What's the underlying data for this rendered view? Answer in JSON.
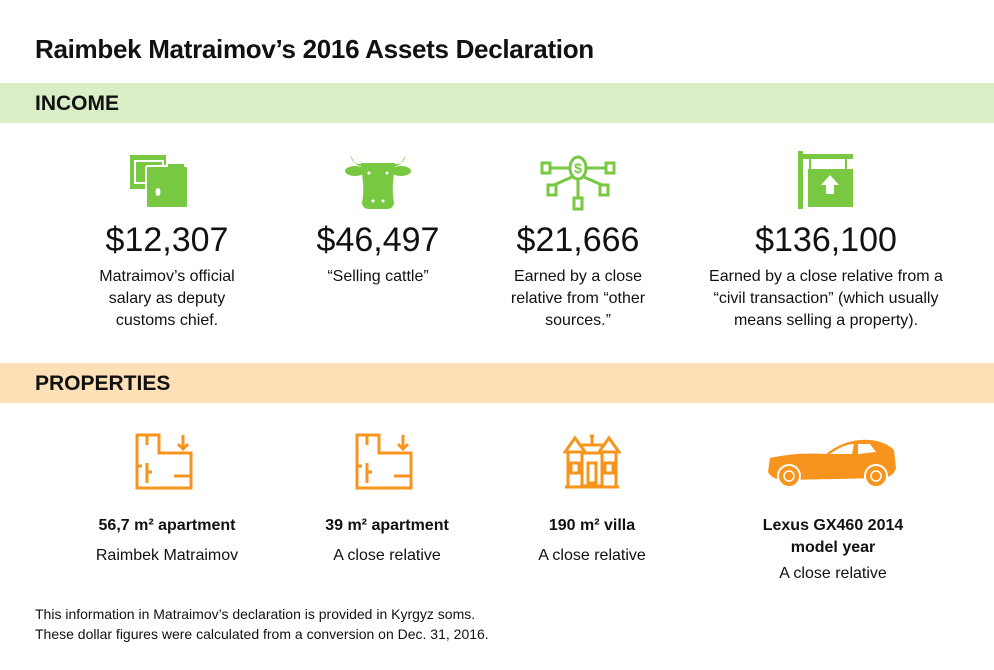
{
  "title": "Raimbek Matraimov’s 2016 Assets Declaration",
  "colors": {
    "income_band": "#d9eec6",
    "income_icon": "#78c841",
    "properties_band": "#fee0b7",
    "properties_icon": "#f7941d"
  },
  "income": {
    "heading": "INCOME",
    "items": [
      {
        "icon": "money-wallet-icon",
        "amount": "$12,307",
        "description": "Matraimov’s official salary as deputy customs chief."
      },
      {
        "icon": "cow-icon",
        "amount": "$46,497",
        "description": "“Selling cattle”"
      },
      {
        "icon": "dollar-network-icon",
        "amount": "$21,666",
        "description": "Earned by a close relative from “other sources.”"
      },
      {
        "icon": "house-sign-icon",
        "amount": "$136,100",
        "description": "Earned by a close relative from a “civil transaction” (which usually means selling a property)."
      }
    ]
  },
  "properties": {
    "heading": "PROPERTIES",
    "items": [
      {
        "icon": "floor-plan-icon",
        "name": "56,7 m² apartment",
        "owner": "Raimbek Matraimov"
      },
      {
        "icon": "floor-plan-icon",
        "name": "39 m² apartment",
        "owner": "A close relative"
      },
      {
        "icon": "villa-icon",
        "name": "190 m² villa",
        "owner": "A close relative"
      },
      {
        "icon": "car-icon",
        "name": "Lexus GX460 2014 model year",
        "owner": "A close relative"
      }
    ]
  },
  "footnote": [
    "This information in Matraimov’s declaration is provided in Kyrgyz soms.",
    "These dollar figures were calculated from a conversion on Dec. 31, 2016."
  ]
}
